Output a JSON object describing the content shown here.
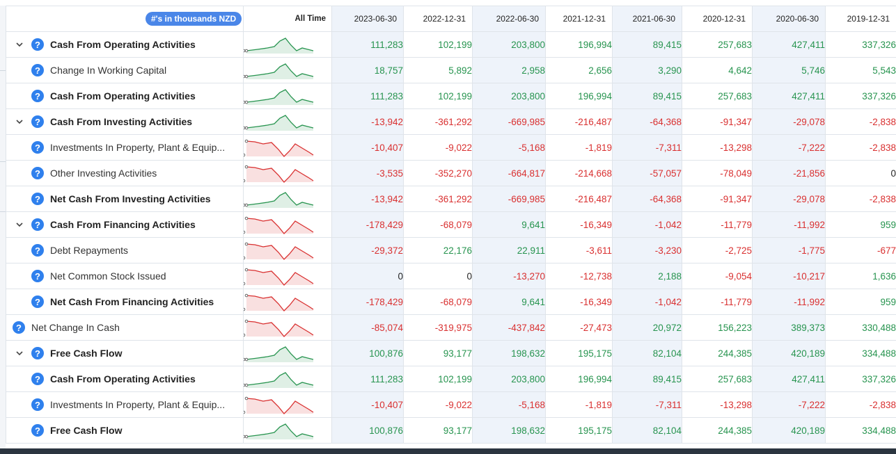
{
  "header": {
    "badge": "#'s in thousands NZD",
    "all_time": "All Time",
    "dates": [
      "2023-06-30",
      "2022-12-31",
      "2022-06-30",
      "2021-12-31",
      "2021-06-30",
      "2020-12-31",
      "2020-06-30",
      "2019-12-31"
    ]
  },
  "colors": {
    "positive": "#27944f",
    "negative": "#d93030",
    "accent": "#4a86e8",
    "help_icon": "#2f80ed"
  },
  "rows": [
    {
      "label": "Cash From Operating Activities",
      "bold": true,
      "expand": true,
      "indent": 1,
      "trend": "green",
      "values": [
        "111,283",
        "102,199",
        "203,800",
        "196,994",
        "89,415",
        "257,683",
        "427,411",
        "337,326"
      ]
    },
    {
      "label": "Change In Working Capital",
      "bold": false,
      "expand": false,
      "indent": 1,
      "trend": "green",
      "values": [
        "18,757",
        "5,892",
        "2,958",
        "2,656",
        "3,290",
        "4,642",
        "5,746",
        "5,543"
      ]
    },
    {
      "label": "Cash From Operating Activities",
      "bold": true,
      "expand": false,
      "indent": 1,
      "trend": "green",
      "values": [
        "111,283",
        "102,199",
        "203,800",
        "196,994",
        "89,415",
        "257,683",
        "427,411",
        "337,326"
      ]
    },
    {
      "label": "Cash From Investing Activities",
      "bold": true,
      "expand": true,
      "indent": 1,
      "trend": "green",
      "values": [
        "-13,942",
        "-361,292",
        "-669,985",
        "-216,487",
        "-64,368",
        "-91,347",
        "-29,078",
        "-2,838"
      ]
    },
    {
      "label": "Investments In Property, Plant & Equip...",
      "bold": false,
      "expand": false,
      "indent": 1,
      "trend": "red",
      "values": [
        "-10,407",
        "-9,022",
        "-5,168",
        "-1,819",
        "-7,311",
        "-13,298",
        "-7,222",
        "-2,838"
      ]
    },
    {
      "label": "Other Investing Activities",
      "bold": false,
      "expand": false,
      "indent": 1,
      "trend": "red",
      "values": [
        "-3,535",
        "-352,270",
        "-664,817",
        "-214,668",
        "-57,057",
        "-78,049",
        "-21,856",
        "0"
      ]
    },
    {
      "label": "Net Cash From Investing Activities",
      "bold": true,
      "expand": false,
      "indent": 1,
      "trend": "green",
      "values": [
        "-13,942",
        "-361,292",
        "-669,985",
        "-216,487",
        "-64,368",
        "-91,347",
        "-29,078",
        "-2,838"
      ]
    },
    {
      "label": "Cash From Financing Activities",
      "bold": true,
      "expand": true,
      "indent": 1,
      "trend": "red",
      "values": [
        "-178,429",
        "-68,079",
        "9,641",
        "-16,349",
        "-1,042",
        "-11,779",
        "-11,992",
        "959"
      ]
    },
    {
      "label": "Debt Repayments",
      "bold": false,
      "expand": false,
      "indent": 1,
      "trend": "red",
      "values": [
        "-29,372",
        "22,176",
        "22,911",
        "-3,611",
        "-3,230",
        "-2,725",
        "-1,775",
        "-677"
      ]
    },
    {
      "label": "Net Common Stock Issued",
      "bold": false,
      "expand": false,
      "indent": 1,
      "trend": "red",
      "values": [
        "0",
        "0",
        "-13,270",
        "-12,738",
        "2,188",
        "-9,054",
        "-10,217",
        "1,636"
      ]
    },
    {
      "label": "Net Cash From Financing Activities",
      "bold": true,
      "expand": false,
      "indent": 1,
      "trend": "red",
      "values": [
        "-178,429",
        "-68,079",
        "9,641",
        "-16,349",
        "-1,042",
        "-11,779",
        "-11,992",
        "959"
      ]
    },
    {
      "label": "Net Change In Cash",
      "bold": false,
      "expand": false,
      "indent": 0,
      "trend": "red",
      "values": [
        "-85,074",
        "-319,975",
        "-437,842",
        "-27,473",
        "20,972",
        "156,223",
        "389,373",
        "330,488"
      ]
    },
    {
      "label": "Free Cash Flow",
      "bold": true,
      "expand": true,
      "indent": 1,
      "trend": "green",
      "values": [
        "100,876",
        "93,177",
        "198,632",
        "195,175",
        "82,104",
        "244,385",
        "420,189",
        "334,488"
      ]
    },
    {
      "label": "Cash From Operating Activities",
      "bold": true,
      "expand": false,
      "indent": 1,
      "trend": "green",
      "values": [
        "111,283",
        "102,199",
        "203,800",
        "196,994",
        "89,415",
        "257,683",
        "427,411",
        "337,326"
      ]
    },
    {
      "label": "Investments In Property, Plant & Equip...",
      "bold": false,
      "expand": false,
      "indent": 1,
      "trend": "red",
      "values": [
        "-10,407",
        "-9,022",
        "-5,168",
        "-1,819",
        "-7,311",
        "-13,298",
        "-7,222",
        "-2,838"
      ]
    },
    {
      "label": "Free Cash Flow",
      "bold": true,
      "expand": false,
      "indent": 1,
      "trend": "green",
      "values": [
        "100,876",
        "93,177",
        "198,632",
        "195,175",
        "82,104",
        "244,385",
        "420,189",
        "334,488"
      ]
    }
  ]
}
